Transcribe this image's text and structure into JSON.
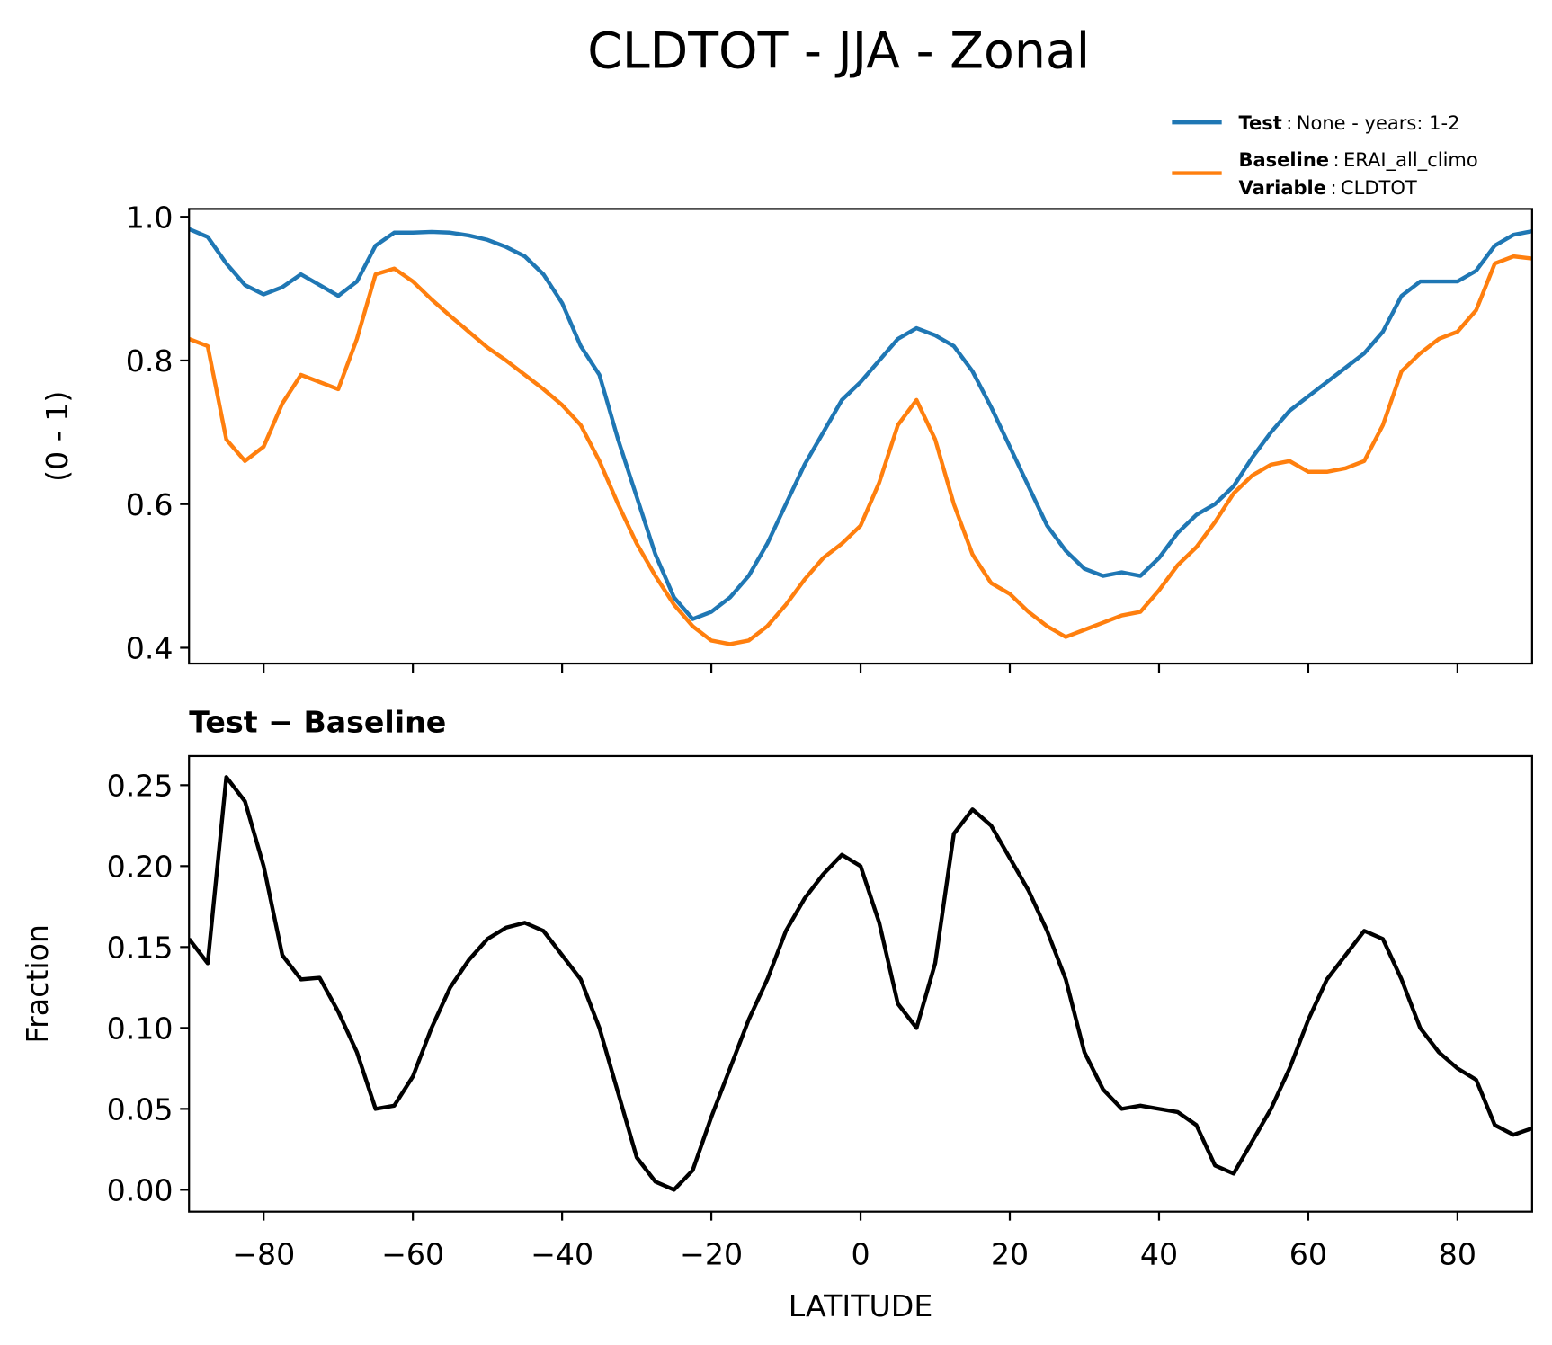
{
  "title": "CLDTOT - JJA - Zonal",
  "chart_data": [
    {
      "type": "line",
      "ylabel": "(0 - 1)",
      "legend_separator": ":",
      "x": [
        -90,
        -87.5,
        -85,
        -82.5,
        -80,
        -77.5,
        -75,
        -72.5,
        -70,
        -67.5,
        -65,
        -62.5,
        -60,
        -57.5,
        -55,
        -52.5,
        -50,
        -47.5,
        -45,
        -42.5,
        -40,
        -37.5,
        -35,
        -32.5,
        -30,
        -27.5,
        -25,
        -22.5,
        -20,
        -17.5,
        -15,
        -12.5,
        -10,
        -7.5,
        -5,
        -2.5,
        0,
        2.5,
        5,
        7.5,
        10,
        12.5,
        15,
        17.5,
        20,
        22.5,
        25,
        27.5,
        30,
        32.5,
        35,
        37.5,
        40,
        42.5,
        45,
        47.5,
        50,
        52.5,
        55,
        57.5,
        60,
        62.5,
        65,
        67.5,
        70,
        72.5,
        75,
        77.5,
        80,
        82.5,
        85,
        87.5,
        90
      ],
      "series": [
        {
          "name": "Test",
          "description": "None - years: 1-2",
          "color": "#1f77b4",
          "values": [
            0.983,
            0.972,
            0.935,
            0.905,
            0.892,
            0.902,
            0.92,
            0.905,
            0.89,
            0.91,
            0.96,
            0.978,
            0.978,
            0.979,
            0.978,
            0.974,
            0.968,
            0.958,
            0.945,
            0.92,
            0.88,
            0.82,
            0.78,
            0.69,
            0.61,
            0.53,
            0.47,
            0.44,
            0.45,
            0.47,
            0.5,
            0.545,
            0.6,
            0.655,
            0.7,
            0.745,
            0.77,
            0.8,
            0.83,
            0.845,
            0.835,
            0.82,
            0.785,
            0.735,
            0.68,
            0.625,
            0.57,
            0.535,
            0.51,
            0.5,
            0.505,
            0.5,
            0.525,
            0.56,
            0.585,
            0.6,
            0.625,
            0.665,
            0.7,
            0.73,
            0.75,
            0.77,
            0.79,
            0.81,
            0.84,
            0.89,
            0.91,
            0.91,
            0.91,
            0.925,
            0.96,
            0.975,
            0.98
          ]
        },
        {
          "name": "Baseline",
          "description": "ERAI_all_climo",
          "color": "#ff7f0e",
          "values": [
            0.83,
            0.82,
            0.69,
            0.66,
            0.68,
            0.74,
            0.78,
            0.77,
            0.76,
            0.83,
            0.92,
            0.928,
            0.91,
            0.885,
            0.862,
            0.84,
            0.818,
            0.8,
            0.78,
            0.76,
            0.738,
            0.71,
            0.66,
            0.6,
            0.545,
            0.5,
            0.46,
            0.43,
            0.41,
            0.405,
            0.41,
            0.43,
            0.46,
            0.495,
            0.525,
            0.545,
            0.57,
            0.63,
            0.71,
            0.745,
            0.69,
            0.6,
            0.53,
            0.49,
            0.475,
            0.45,
            0.43,
            0.415,
            0.425,
            0.435,
            0.445,
            0.45,
            0.48,
            0.515,
            0.54,
            0.575,
            0.615,
            0.64,
            0.655,
            0.66,
            0.645,
            0.645,
            0.65,
            0.66,
            0.71,
            0.785,
            0.81,
            0.83,
            0.84,
            0.87,
            0.935,
            0.945,
            0.942
          ]
        }
      ],
      "legend_note": {
        "name": "Variable",
        "text": "CLDTOT"
      },
      "legend": "upper right",
      "xlim": [
        -90,
        90
      ],
      "xticks": [
        -80,
        -60,
        -40,
        -20,
        0,
        20,
        40,
        60,
        80
      ],
      "show_xtick_labels": false,
      "ylim": [
        0.378,
        1.011
      ],
      "yticks": [
        0.4,
        0.6,
        0.8,
        {
          "value": 1,
          "label": "1.0"
        }
      ]
    },
    {
      "type": "line",
      "title": "Test − Baseline",
      "xlabel": "LATITUDE",
      "ylabel": "Fraction",
      "x": [
        -90,
        -87.5,
        -85,
        -82.5,
        -80,
        -77.5,
        -75,
        -72.5,
        -70,
        -67.5,
        -65,
        -62.5,
        -60,
        -57.5,
        -55,
        -52.5,
        -50,
        -47.5,
        -45,
        -42.5,
        -40,
        -37.5,
        -35,
        -32.5,
        -30,
        -27.5,
        -25,
        -22.5,
        -20,
        -17.5,
        -15,
        -12.5,
        -10,
        -7.5,
        -5,
        -2.5,
        0,
        2.5,
        5,
        7.5,
        10,
        12.5,
        15,
        17.5,
        20,
        22.5,
        25,
        27.5,
        30,
        32.5,
        35,
        37.5,
        40,
        42.5,
        45,
        47.5,
        50,
        52.5,
        55,
        57.5,
        60,
        62.5,
        65,
        67.5,
        70,
        72.5,
        75,
        77.5,
        80,
        82.5,
        85,
        87.5,
        90
      ],
      "series": [
        {
          "color": "#000000",
          "values": [
            0.155,
            0.14,
            0.255,
            0.24,
            0.2,
            0.145,
            0.13,
            0.131,
            0.11,
            0.085,
            0.05,
            0.052,
            0.07,
            0.1,
            0.125,
            0.142,
            0.155,
            0.162,
            0.165,
            0.16,
            0.145,
            0.13,
            0.1,
            0.06,
            0.02,
            0.005,
            0.0,
            0.012,
            0.045,
            0.075,
            0.105,
            0.13,
            0.16,
            0.18,
            0.195,
            0.207,
            0.2,
            0.165,
            0.115,
            0.1,
            0.14,
            0.22,
            0.235,
            0.225,
            0.205,
            0.185,
            0.16,
            0.13,
            0.085,
            0.062,
            0.05,
            0.052,
            0.05,
            0.048,
            0.04,
            0.015,
            0.01,
            0.03,
            0.05,
            0.075,
            0.105,
            0.13,
            0.145,
            0.16,
            0.155,
            0.13,
            0.1,
            0.085,
            0.075,
            0.068,
            0.04,
            0.034,
            0.038
          ]
        }
      ],
      "xlim": [
        -90,
        90
      ],
      "xticks": [
        {
          "value": -80,
          "label": "−80"
        },
        {
          "value": -60,
          "label": "−60"
        },
        {
          "value": -40,
          "label": "−40"
        },
        {
          "value": -20,
          "label": "−20"
        },
        0,
        20,
        40,
        60,
        80
      ],
      "show_xtick_labels": true,
      "ylim": [
        -0.0135,
        0.268
      ],
      "yticks": [
        {
          "value": 0,
          "label": "0.00"
        },
        {
          "value": 0.05,
          "label": "0.05"
        },
        {
          "value": 0.1,
          "label": "0.10"
        },
        {
          "value": 0.15,
          "label": "0.15"
        },
        {
          "value": 0.2,
          "label": "0.20"
        },
        {
          "value": 0.25,
          "label": "0.25"
        }
      ]
    }
  ]
}
